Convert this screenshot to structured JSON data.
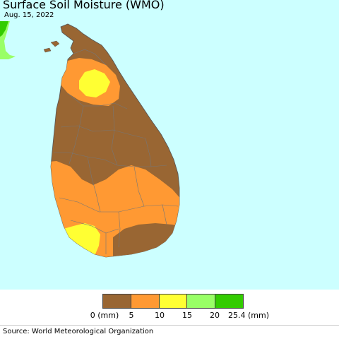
{
  "title": "Surface Soil Moisture (WMO)",
  "date": "Aug. 15, 2022",
  "colors": {
    "ocean": "#ccffff",
    "neighbor_land": "#99ff66",
    "neighbor_land_dark": "#33cc00",
    "border": "#777777"
  },
  "legend": {
    "swatches": [
      {
        "range": "0-5",
        "color": "#996633"
      },
      {
        "range": "5-10",
        "color": "#ff9933"
      },
      {
        "range": "10-15",
        "color": "#ffff33"
      },
      {
        "range": "15-20",
        "color": "#99ff66"
      },
      {
        "range": "20-25.4",
        "color": "#33cc00"
      }
    ],
    "ticks": [
      "0 (mm)",
      "5",
      "10",
      "15",
      "20",
      "25.4 (mm)"
    ]
  },
  "source": "Source: World Meteorological Organization"
}
